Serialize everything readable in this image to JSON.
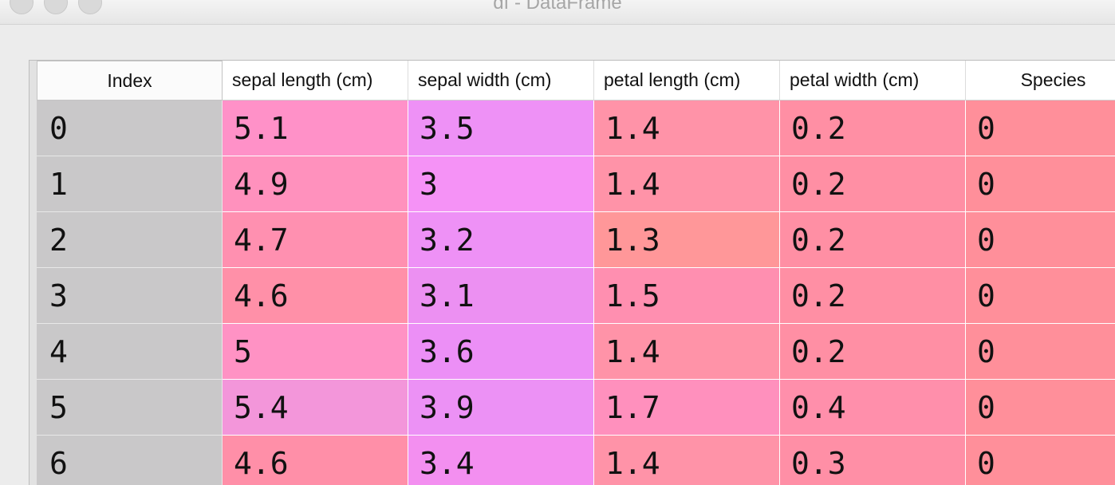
{
  "window": {
    "title": "df - DataFrame"
  },
  "table": {
    "columns": [
      "Index",
      "sepal length (cm)",
      "sepal width (cm)",
      "petal length (cm)",
      "petal width (cm)",
      "Species"
    ],
    "rows": [
      [
        "0",
        "5.1",
        "3.5",
        "1.4",
        "0.2",
        "0"
      ],
      [
        "1",
        "4.9",
        "3",
        "1.4",
        "0.2",
        "0"
      ],
      [
        "2",
        "4.7",
        "3.2",
        "1.3",
        "0.2",
        "0"
      ],
      [
        "3",
        "4.6",
        "3.1",
        "1.5",
        "0.2",
        "0"
      ],
      [
        "4",
        "5",
        "3.6",
        "1.4",
        "0.2",
        "0"
      ],
      [
        "5",
        "5.4",
        "3.9",
        "1.7",
        "0.4",
        "0"
      ],
      [
        "6",
        "4.6",
        "3.4",
        "1.4",
        "0.3",
        "0"
      ]
    ],
    "cell_colors": [
      [
        "#c9c8c9",
        "#ff91c8",
        "#ee91f6",
        "#ff93a8",
        "#ff8fa4",
        "#ff8f9a"
      ],
      [
        "#c9c8c9",
        "#ff91bd",
        "#f592f6",
        "#ff93a8",
        "#ff8fa4",
        "#ff8f9a"
      ],
      [
        "#c9c8c9",
        "#ff90b0",
        "#ee91f6",
        "#ff9799",
        "#ff8fa4",
        "#ff8f9a"
      ],
      [
        "#c9c8c9",
        "#ff90a8",
        "#ec90f2",
        "#ff8fb0",
        "#ff8fa4",
        "#ff8f9a"
      ],
      [
        "#c9c8c9",
        "#ff92c4",
        "#ec8ff6",
        "#ff93a8",
        "#ff8fa4",
        "#ff8f9a"
      ],
      [
        "#c9c8c9",
        "#f396da",
        "#ec91f5",
        "#ff90bd",
        "#ff8fab",
        "#ff8f9a"
      ],
      [
        "#c9c8c9",
        "#ff8fa8",
        "#f38ff0",
        "#ff93a8",
        "#ff8fa6",
        "#ff8f9a"
      ]
    ]
  }
}
